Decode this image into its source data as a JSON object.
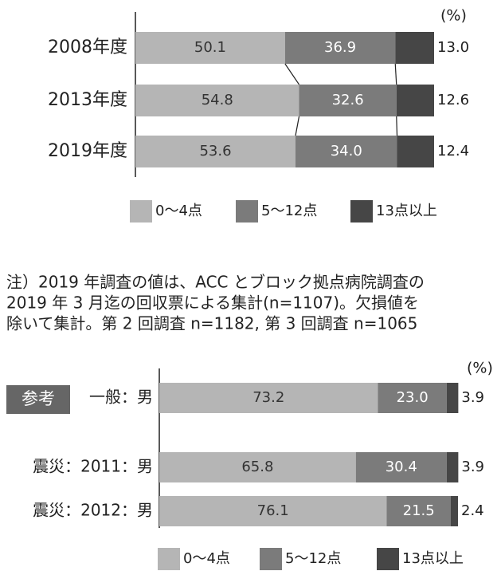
{
  "chart_data": [
    {
      "type": "stacked-barh",
      "unit_label": "(%)",
      "xlim": [
        0,
        100
      ],
      "connectors": true,
      "categories": [
        "2008年度",
        "2013年度",
        "2019年度"
      ],
      "series": [
        {
          "name": "0～4点",
          "color": "#b5b5b5",
          "values": [
            50.1,
            54.8,
            53.6
          ],
          "value_labels": [
            "50.1",
            "54.8",
            "53.6"
          ]
        },
        {
          "name": "5～12点",
          "color": "#7b7b7b",
          "values": [
            36.9,
            32.6,
            34.0
          ],
          "value_labels": [
            "36.9",
            "32.6",
            "34.0"
          ]
        },
        {
          "name": "13点以上",
          "color": "#464646",
          "values": [
            13.0,
            12.6,
            12.4
          ],
          "value_labels": [
            "13.0",
            "12.6",
            "12.4"
          ]
        }
      ]
    },
    {
      "type": "stacked-barh",
      "unit_label": "(%)",
      "xlim": [
        0,
        100
      ],
      "connectors": false,
      "annotation": "参考",
      "categories": [
        "一般：男",
        "震災：2011：男",
        "震災：2012：男"
      ],
      "series": [
        {
          "name": "0～4点",
          "color": "#b5b5b5",
          "values": [
            73.2,
            65.8,
            76.1
          ],
          "value_labels": [
            "73.2",
            "65.8",
            "76.1"
          ]
        },
        {
          "name": "5～12点",
          "color": "#7b7b7b",
          "values": [
            23.0,
            30.4,
            21.5
          ],
          "value_labels": [
            "23.0",
            "30.4",
            "21.5"
          ]
        },
        {
          "name": "13点以上",
          "color": "#464646",
          "values": [
            3.9,
            3.9,
            2.4
          ],
          "value_labels": [
            "3.9",
            "3.9",
            "2.4"
          ]
        }
      ]
    }
  ],
  "note": [
    "注）2019 年調査の値は、ACC とブロック拠点病院調査の",
    "2019 年 3 月迄の回収票による集計(n=1107)。欠損値を",
    "除いて集計。第 2 回調査 n=1182, 第 3 回調査 n=1065"
  ]
}
